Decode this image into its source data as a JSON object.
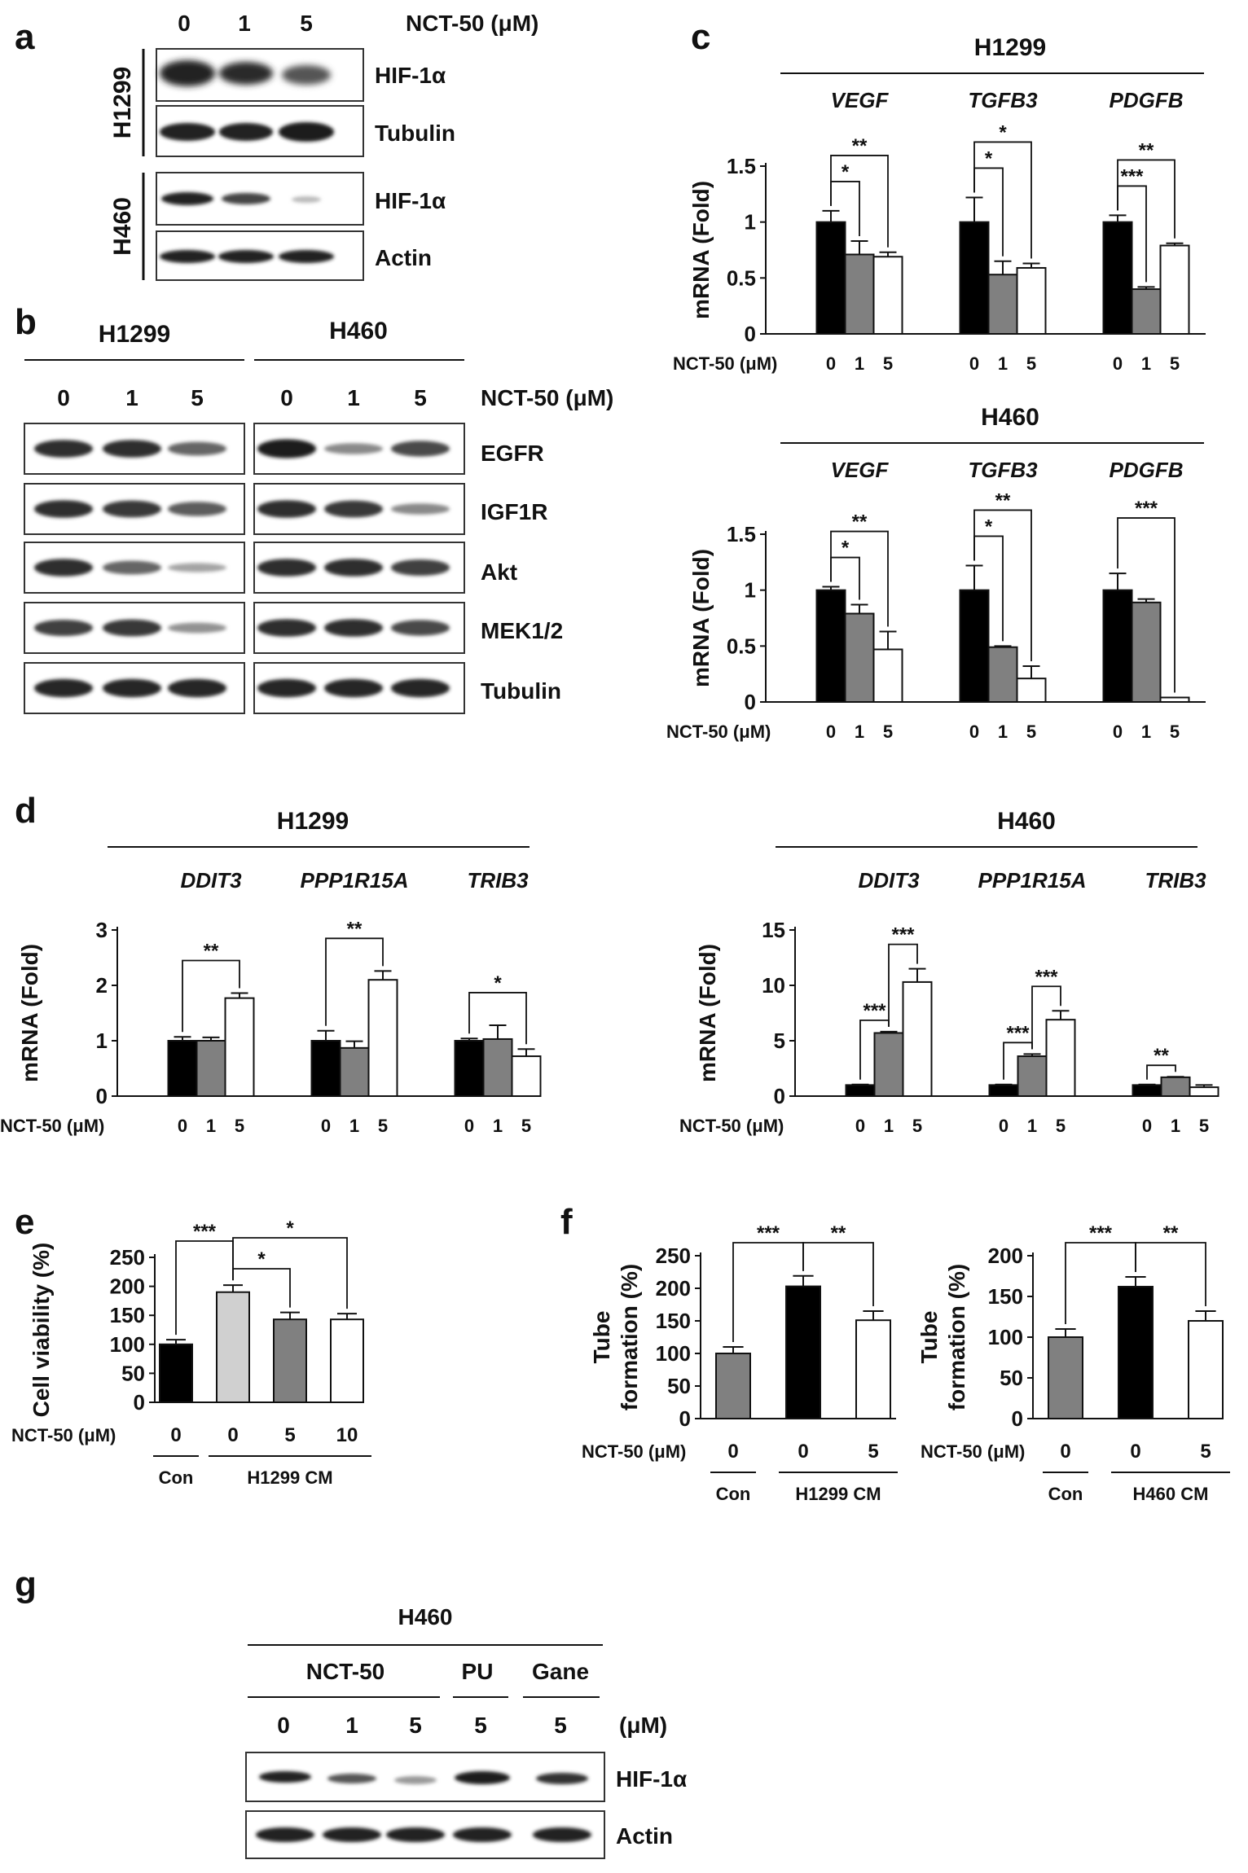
{
  "panel_labels": {
    "a": "a",
    "b": "b",
    "c": "c",
    "d": "d",
    "e": "e",
    "f": "f",
    "g": "g"
  },
  "units": {
    "nct_um": "NCT-50 (μM)",
    "um": "(μM)"
  },
  "doses_3": [
    "0",
    "1",
    "5"
  ],
  "panel_a": {
    "cells": [
      "H1299",
      "H460"
    ],
    "rows": [
      "HIF-1α",
      "Tubulin",
      "HIF-1α",
      "Actin"
    ]
  },
  "panel_b": {
    "groups": [
      "H1299",
      "H460"
    ],
    "rows": [
      "EGFR",
      "IGF1R",
      "Akt",
      "MEK1/2",
      "Tubulin"
    ]
  },
  "panel_g": {
    "cell": "H460",
    "groups": [
      "NCT-50",
      "PU",
      "Gane"
    ],
    "lanes": [
      "0",
      "1",
      "5",
      "5",
      "5"
    ],
    "rows": [
      "HIF-1α",
      "Actin"
    ]
  },
  "colors": {
    "black": "#000000",
    "gray": "#808080",
    "light": "#d0d0d0",
    "white": "#ffffff"
  },
  "chart_data": [
    {
      "id": "c_h1299",
      "type": "bar",
      "title": "H1299",
      "ylabel": "mRNA (Fold)",
      "ylim": [
        0,
        1.5
      ],
      "yticks": [
        "0",
        "0.5",
        "1",
        "1.5"
      ],
      "xlabel": "NCT-50 (μM)",
      "genes": [
        "VEGF",
        "TGFB3",
        "PDGFB"
      ],
      "categories": [
        "0",
        "1",
        "5"
      ],
      "values": [
        [
          1.0,
          0.71,
          0.69
        ],
        [
          1.0,
          0.53,
          0.59
        ],
        [
          1.0,
          0.4,
          0.79
        ]
      ],
      "errors": [
        [
          0.1,
          0.12,
          0.04
        ],
        [
          0.22,
          0.12,
          0.04
        ],
        [
          0.06,
          0.02,
          0.02
        ]
      ],
      "sig": [
        [
          "*",
          "**"
        ],
        [
          "*",
          "*"
        ],
        [
          "***",
          "**"
        ]
      ]
    },
    {
      "id": "c_h460",
      "type": "bar",
      "title": "H460",
      "ylabel": "mRNA (Fold)",
      "ylim": [
        0,
        1.5
      ],
      "yticks": [
        "0",
        "0.5",
        "1",
        "1.5"
      ],
      "xlabel": "NCT-50 (μM)",
      "genes": [
        "VEGF",
        "TGFB3",
        "PDGFB"
      ],
      "categories": [
        "0",
        "1",
        "5"
      ],
      "values": [
        [
          1.0,
          0.79,
          0.47
        ],
        [
          1.0,
          0.49,
          0.21
        ],
        [
          1.0,
          0.89,
          0.04
        ]
      ],
      "errors": [
        [
          0.03,
          0.08,
          0.16
        ],
        [
          0.22,
          0.01,
          0.11
        ],
        [
          0.15,
          0.03,
          0.0
        ]
      ],
      "sig": [
        [
          "*",
          "**"
        ],
        [
          "*",
          "**"
        ],
        [
          "",
          "***"
        ]
      ]
    },
    {
      "id": "d_h1299",
      "type": "bar",
      "title": "H1299",
      "ylabel": "mRNA (Fold)",
      "ylim": [
        0,
        3
      ],
      "yticks": [
        "0",
        "1",
        "2",
        "3"
      ],
      "xlabel": "NCT-50 (μM)",
      "genes": [
        "DDIT3",
        "PPP1R15A",
        "TRIB3"
      ],
      "categories": [
        "0",
        "1",
        "5"
      ],
      "values": [
        [
          1.0,
          1.0,
          1.77
        ],
        [
          1.0,
          0.87,
          2.1
        ],
        [
          1.0,
          1.03,
          0.72
        ]
      ],
      "errors": [
        [
          0.07,
          0.06,
          0.09
        ],
        [
          0.18,
          0.12,
          0.16
        ],
        [
          0.04,
          0.25,
          0.13
        ]
      ],
      "sig": [
        [
          "",
          "**"
        ],
        [
          "",
          "**"
        ],
        [
          "",
          "*"
        ]
      ]
    },
    {
      "id": "d_h460",
      "type": "bar",
      "title": "H460",
      "ylabel": "mRNA (Fold)",
      "ylim": [
        0,
        15
      ],
      "yticks": [
        "0",
        "5",
        "10",
        "15"
      ],
      "xlabel": "NCT-50 (μM)",
      "genes": [
        "DDIT3",
        "PPP1R15A",
        "TRIB3"
      ],
      "categories": [
        "0",
        "1",
        "5"
      ],
      "values": [
        [
          1.0,
          5.7,
          10.3
        ],
        [
          1.0,
          3.6,
          6.9
        ],
        [
          1.0,
          1.7,
          0.8
        ]
      ],
      "errors": [
        [
          0.05,
          0.12,
          1.2
        ],
        [
          0.05,
          0.2,
          0.8
        ],
        [
          0.05,
          0.05,
          0.2
        ]
      ],
      "sig": [
        [
          "***",
          "***"
        ],
        [
          "***",
          "***"
        ],
        [
          "**",
          ""
        ]
      ]
    },
    {
      "id": "e",
      "type": "bar",
      "ylabel": "Cell viability (%)",
      "ylim": [
        0,
        250
      ],
      "yticks": [
        "0",
        "50",
        "100",
        "150",
        "200",
        "250"
      ],
      "xlabel": "NCT-50 (μM)",
      "categories": [
        "0",
        "0",
        "5",
        "10"
      ],
      "values": [
        100,
        190,
        143,
        143
      ],
      "errors": [
        8,
        12,
        12,
        10
      ],
      "groups": [
        "Con",
        "H1299 CM"
      ],
      "sig": [
        "***",
        "*",
        "*"
      ]
    },
    {
      "id": "f1",
      "type": "bar",
      "ylabel": "Tube formation (%)",
      "ylim": [
        0,
        250
      ],
      "yticks": [
        "0",
        "50",
        "100",
        "150",
        "200",
        "250"
      ],
      "xlabel": "NCT-50 (μM)",
      "categories": [
        "0",
        "0",
        "5"
      ],
      "values": [
        100,
        203,
        151
      ],
      "errors": [
        10,
        16,
        14
      ],
      "groups": [
        "Con",
        "H1299 CM"
      ],
      "sig": [
        "***",
        "**"
      ]
    },
    {
      "id": "f2",
      "type": "bar",
      "ylabel": "Tube formation (%)",
      "ylim": [
        0,
        200
      ],
      "yticks": [
        "0",
        "50",
        "100",
        "150",
        "200"
      ],
      "xlabel": "NCT-50 (μM)",
      "categories": [
        "0",
        "0",
        "5"
      ],
      "values": [
        100,
        162,
        120
      ],
      "errors": [
        10,
        12,
        12
      ],
      "groups": [
        "Con",
        "H460 CM"
      ],
      "sig": [
        "***",
        "**"
      ]
    }
  ]
}
